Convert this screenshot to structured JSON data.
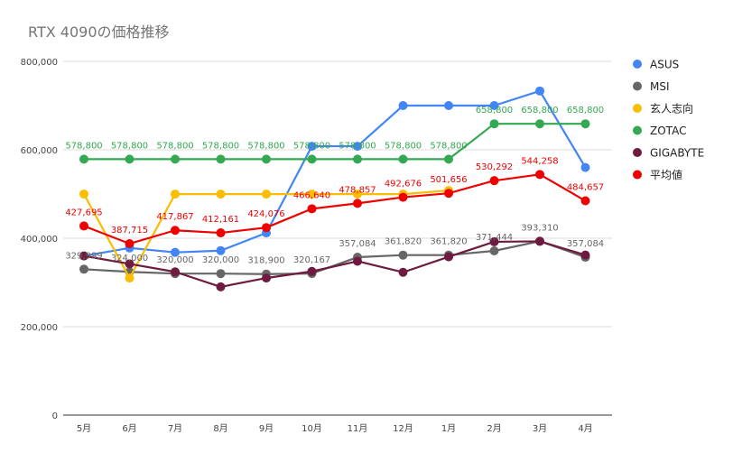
{
  "chart_data": {
    "type": "line",
    "title": "RTX 4090の価格推移",
    "xlabel": "",
    "ylabel": "",
    "categories": [
      "5月",
      "6月",
      "7月",
      "8月",
      "9月",
      "10月",
      "11月",
      "12月",
      "1月",
      "2月",
      "3月",
      "4月"
    ],
    "ylim": [
      0,
      800000
    ],
    "yticks": [
      "0",
      "200,000",
      "400,000",
      "600,000",
      "800,000"
    ],
    "grid": true,
    "legend_position": "right",
    "series": [
      {
        "name": "ASUS",
        "color": "#4285F4",
        "values": [
          360000,
          378000,
          368000,
          372000,
          412000,
          608000,
          608000,
          700000,
          700000,
          700000,
          733000,
          560000
        ],
        "labels": []
      },
      {
        "name": "MSI",
        "color": "#666666",
        "values": [
          329999,
          324000,
          320000,
          320000,
          318900,
          320167,
          357084,
          361820,
          361820,
          371444,
          393310,
          357084
        ],
        "labels": [
          "329,999",
          "324,000",
          "320,000",
          "320,000",
          "318,900",
          "320,167",
          "357,084",
          "361,820",
          "361,820",
          "371,444",
          "393,310",
          "357,084"
        ]
      },
      {
        "name": "玄人志向",
        "color": "#FBBC04",
        "values": [
          499800,
          310000,
          499800,
          499800,
          499800,
          499800,
          499800,
          499800,
          508000,
          null,
          null,
          null
        ],
        "labels": []
      },
      {
        "name": "ZOTAC",
        "color": "#34A853",
        "values": [
          578800,
          578800,
          578800,
          578800,
          578800,
          578800,
          578800,
          578800,
          578800,
          658800,
          658800,
          658800
        ],
        "labels": [
          "578,800",
          "578,800",
          "578,800",
          "578,800",
          "578,800",
          "578,800",
          "578,800",
          "578,800",
          "578,800",
          "658,800",
          "658,800",
          "658,800"
        ]
      },
      {
        "name": "GIGABYTE",
        "color": "#6E1B3F",
        "values": [
          360000,
          342000,
          324000,
          290000,
          310000,
          325000,
          348000,
          323000,
          358000,
          392000,
          393000,
          362000
        ],
        "labels": []
      },
      {
        "name": "平均値",
        "color": "#EE0000",
        "values": [
          427695,
          387715,
          417867,
          412161,
          424076,
          466640,
          478857,
          492676,
          501656,
          530292,
          544258,
          484657
        ],
        "labels": [
          "427,695",
          "387,715",
          "417,867",
          "412,161",
          "424,076",
          "466,640",
          "478,857",
          "492,676",
          "501,656",
          "530,292",
          "544,258",
          "484,657"
        ]
      }
    ]
  }
}
